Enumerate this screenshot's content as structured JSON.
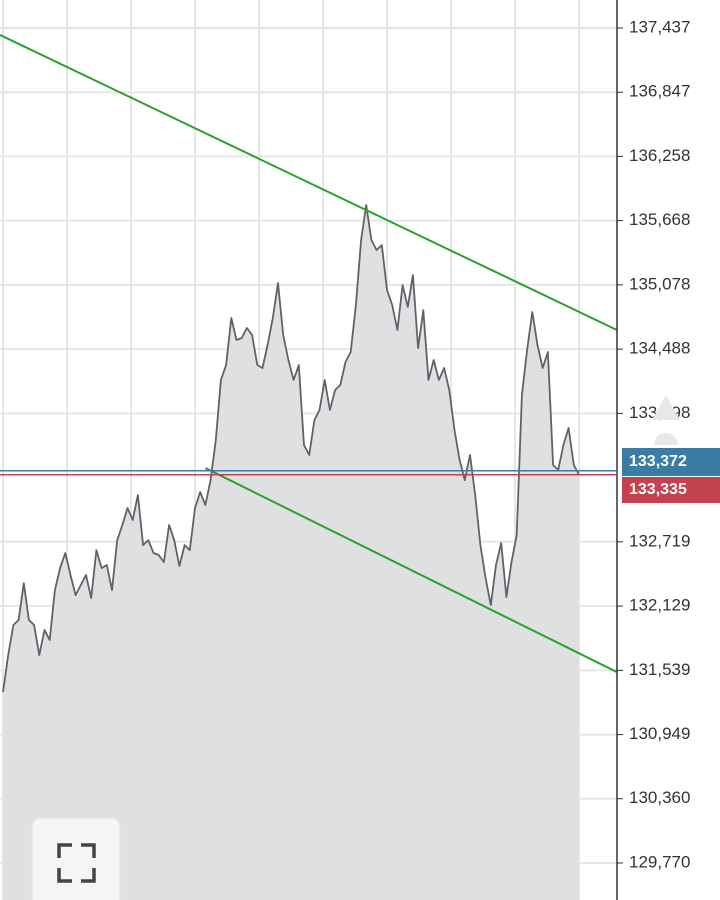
{
  "chart_data": {
    "type": "area",
    "color": "#5f6368",
    "fill": "#dfe0e2",
    "ylim": [
      129430,
      137694
    ],
    "yticks": [
      {
        "value": 137437,
        "label": "137,437"
      },
      {
        "value": 136847,
        "label": "136,847"
      },
      {
        "value": 136258,
        "label": "136,258"
      },
      {
        "value": 135668,
        "label": "135,668"
      },
      {
        "value": 135078,
        "label": "135,078"
      },
      {
        "value": 134488,
        "label": "134,488"
      },
      {
        "value": 133898,
        "label": "133,898"
      },
      {
        "value": 132719,
        "label": "132,719"
      },
      {
        "value": 132129,
        "label": "132,129"
      },
      {
        "value": 131539,
        "label": "131,539"
      },
      {
        "value": 130949,
        "label": "130,949"
      },
      {
        "value": 130360,
        "label": "130,360"
      },
      {
        "value": 129770,
        "label": "129,770"
      }
    ],
    "grid": true,
    "values": [
      131340,
      131679,
      131955,
      132001,
      132340,
      132001,
      131955,
      131679,
      131909,
      131817,
      132276,
      132478,
      132616,
      132414,
      132230,
      132322,
      132414,
      132203,
      132643,
      132478,
      132506,
      132276,
      132735,
      132873,
      133029,
      132919,
      133149,
      132689,
      132735,
      132616,
      132598,
      132533,
      132873,
      132735,
      132497,
      132689,
      132643,
      133029,
      133176,
      133057,
      133286,
      133654,
      134205,
      134342,
      134774,
      134572,
      134590,
      134682,
      134618,
      134342,
      134315,
      134526,
      134774,
      135095,
      134618,
      134388,
      134205,
      134342,
      133608,
      133516,
      133837,
      133929,
      134205,
      133929,
      134113,
      134159,
      134370,
      134462,
      134893,
      135490,
      135812,
      135490,
      135398,
      135444,
      135031,
      134893,
      134664,
      135077,
      134875,
      135169,
      134498,
      134847,
      134205,
      134388,
      134205,
      134315,
      134113,
      133745,
      133470,
      133286,
      133516,
      133149,
      132689,
      132386,
      132138,
      132506,
      132708,
      132212,
      132533,
      132781,
      134067,
      134480,
      134829,
      134526,
      134315,
      134462,
      133424,
      133378,
      133608,
      133764,
      133424,
      133335
    ],
    "trend_lines": [
      {
        "color": "#2ca02c",
        "points": [
          [
            -0.58,
            137373
          ],
          [
            118.3,
            134664
          ]
        ]
      },
      {
        "color": "#2ca02c",
        "points": [
          [
            39,
            133396
          ],
          [
            118.3,
            131523
          ]
        ]
      }
    ],
    "price_lines": [
      {
        "value": 133372,
        "label": "133,372",
        "color": "#3a7ca5"
      },
      {
        "value": 133335,
        "label": "133,335",
        "color": "#c4424f"
      }
    ]
  }
}
